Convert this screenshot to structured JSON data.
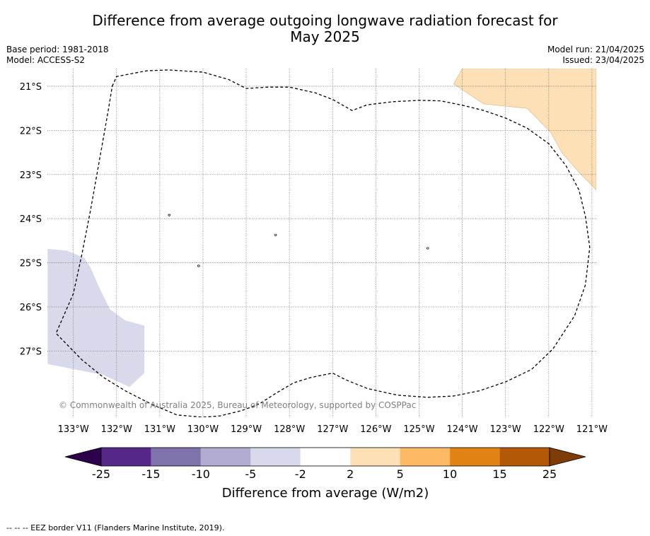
{
  "title": {
    "line1": "Difference from average outgoing longwave radiation forecast for",
    "line2": "May 2025"
  },
  "base_period": "Base period: 1981-2018",
  "model": "Model: ACCESS-S2",
  "model_run": "Model run: 21/04/2025",
  "issued": "Issued: 23/04/2025",
  "copyright": "© Commonwealth of Australia 2025, Bureau of Meteorology, supported by COSPPac",
  "map": {
    "lon_range": [
      -133.6,
      -120.9
    ],
    "lat_range": [
      -28.5,
      -20.6
    ],
    "lon_ticks": [
      {
        "value": -133,
        "label": "133°W"
      },
      {
        "value": -132,
        "label": "132°W"
      },
      {
        "value": -131,
        "label": "131°W"
      },
      {
        "value": -130,
        "label": "130°W"
      },
      {
        "value": -129,
        "label": "129°W"
      },
      {
        "value": -128,
        "label": "128°W"
      },
      {
        "value": -127,
        "label": "127°W"
      },
      {
        "value": -126,
        "label": "126°W"
      },
      {
        "value": -125,
        "label": "125°W"
      },
      {
        "value": -124,
        "label": "124°W"
      },
      {
        "value": -123,
        "label": "123°W"
      },
      {
        "value": -122,
        "label": "122°W"
      },
      {
        "value": -121,
        "label": "121°W"
      }
    ],
    "lat_ticks": [
      {
        "value": -21,
        "label": "21°S"
      },
      {
        "value": -22,
        "label": "22°S"
      },
      {
        "value": -23,
        "label": "23°S"
      },
      {
        "value": -24,
        "label": "24°S"
      },
      {
        "value": -25,
        "label": "25°S"
      },
      {
        "value": -26,
        "label": "26°S"
      },
      {
        "value": -27,
        "label": "27°S"
      }
    ],
    "anomaly_regions": [
      {
        "class": "2 to 5",
        "color": "#fee0b6",
        "outline": "#e0b080",
        "points": [
          [
            -124.0,
            -20.6
          ],
          [
            -120.9,
            -20.6
          ],
          [
            -120.9,
            -23.35
          ],
          [
            -121.3,
            -22.95
          ],
          [
            -121.7,
            -22.5
          ],
          [
            -121.95,
            -22.05
          ],
          [
            -122.5,
            -21.5
          ],
          [
            -123.5,
            -21.4
          ],
          [
            -124.2,
            -20.95
          ]
        ]
      },
      {
        "class": "-5 to -2",
        "color": "#d8daeb",
        "outline": "#ffffff",
        "points": [
          [
            -133.6,
            -24.68
          ],
          [
            -133.15,
            -24.72
          ],
          [
            -132.75,
            -24.88
          ],
          [
            -132.6,
            -25.1
          ],
          [
            -132.4,
            -25.55
          ],
          [
            -132.15,
            -26.05
          ],
          [
            -131.8,
            -26.3
          ],
          [
            -131.35,
            -26.42
          ],
          [
            -131.35,
            -27.5
          ],
          [
            -131.7,
            -27.82
          ],
          [
            -132.3,
            -27.55
          ],
          [
            -133.6,
            -27.3
          ]
        ]
      }
    ],
    "eez_border": [
      [
        -132.1,
        -21.0
      ],
      [
        -132.0,
        -20.78
      ],
      [
        -131.3,
        -20.65
      ],
      [
        -130.8,
        -20.63
      ],
      [
        -130.0,
        -20.68
      ],
      [
        -129.4,
        -20.85
      ],
      [
        -129.0,
        -21.05
      ],
      [
        -128.5,
        -21.02
      ],
      [
        -128.0,
        -21.02
      ],
      [
        -127.4,
        -21.15
      ],
      [
        -127.0,
        -21.3
      ],
      [
        -126.55,
        -21.55
      ],
      [
        -126.2,
        -21.42
      ],
      [
        -125.6,
        -21.35
      ],
      [
        -125.0,
        -21.32
      ],
      [
        -124.5,
        -21.33
      ],
      [
        -124.0,
        -21.43
      ],
      [
        -123.5,
        -21.55
      ],
      [
        -123.0,
        -21.72
      ],
      [
        -122.5,
        -21.95
      ],
      [
        -122.0,
        -22.3
      ],
      [
        -121.6,
        -22.8
      ],
      [
        -121.3,
        -23.35
      ],
      [
        -121.15,
        -23.95
      ],
      [
        -121.05,
        -24.65
      ],
      [
        -121.15,
        -25.5
      ],
      [
        -121.4,
        -26.2
      ],
      [
        -121.9,
        -26.95
      ],
      [
        -122.4,
        -27.42
      ],
      [
        -123.0,
        -27.7
      ],
      [
        -123.6,
        -27.9
      ],
      [
        -124.2,
        -28.02
      ],
      [
        -124.8,
        -28.05
      ],
      [
        -125.5,
        -28.0
      ],
      [
        -126.2,
        -27.85
      ],
      [
        -126.7,
        -27.65
      ],
      [
        -127.0,
        -27.5
      ],
      [
        -127.5,
        -27.6
      ],
      [
        -127.9,
        -27.72
      ],
      [
        -128.3,
        -27.95
      ],
      [
        -128.7,
        -28.2
      ],
      [
        -129.1,
        -28.35
      ],
      [
        -129.6,
        -28.47
      ],
      [
        -130.0,
        -28.5
      ],
      [
        -130.6,
        -28.45
      ],
      [
        -131.2,
        -28.2
      ],
      [
        -131.8,
        -27.9
      ],
      [
        -132.3,
        -27.6
      ],
      [
        -132.8,
        -27.2
      ],
      [
        -133.4,
        -26.6
      ],
      [
        -133.0,
        -25.7
      ],
      [
        -132.8,
        -24.8
      ],
      [
        -132.6,
        -23.8
      ],
      [
        -132.4,
        -22.7
      ],
      [
        -132.2,
        -21.6
      ],
      [
        -132.1,
        -21.0
      ]
    ],
    "islands": [
      [
        -130.78,
        -23.92
      ],
      [
        -128.32,
        -24.37
      ],
      [
        -124.8,
        -24.67
      ],
      [
        -130.1,
        -25.07
      ]
    ]
  },
  "colorbar": {
    "label": "Difference from average (W/m2)",
    "ticks": [
      "-25",
      "-15",
      "-10",
      "-5",
      "-2",
      "2",
      "5",
      "10",
      "15",
      "25"
    ],
    "under_color": "#2d004b",
    "over_color": "#7f3b08",
    "colors": [
      "#542788",
      "#8073ac",
      "#b2abd2",
      "#d8daeb",
      "#ffffff",
      "#fee0b6",
      "#fdb863",
      "#e08214",
      "#b35806"
    ]
  },
  "footer": "--  --  -- EEZ border V11 (Flanders Marine Institute, 2019)."
}
